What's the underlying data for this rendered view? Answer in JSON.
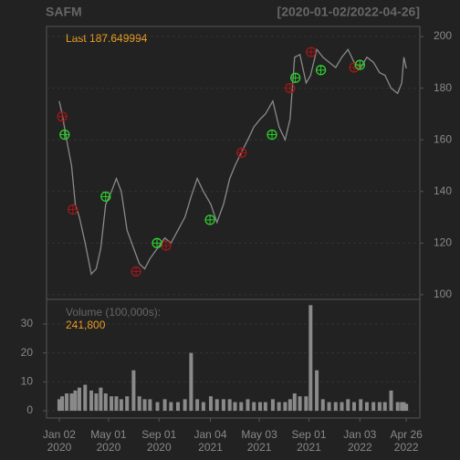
{
  "chart_data": [
    {
      "type": "line",
      "title": "SAFM",
      "subtitle": "[2020-01-02/2022-04-26]",
      "annotation": "Last 187.649994",
      "x": [
        "2020-01-02",
        "2020-01-09",
        "2020-01-20",
        "2020-02-01",
        "2020-02-10",
        "2020-02-20",
        "2020-03-05",
        "2020-03-20",
        "2020-04-01",
        "2020-04-12",
        "2020-04-24",
        "2020-05-08",
        "2020-05-20",
        "2020-06-01",
        "2020-06-15",
        "2020-07-01",
        "2020-07-15",
        "2020-07-28",
        "2020-08-10",
        "2020-08-28",
        "2020-09-15",
        "2020-09-30",
        "2020-10-17",
        "2020-11-03",
        "2020-11-18",
        "2020-12-03",
        "2020-12-18",
        "2021-01-05",
        "2021-01-20",
        "2021-02-05",
        "2021-02-20",
        "2021-03-05",
        "2021-03-20",
        "2021-04-05",
        "2021-04-20",
        "2021-05-05",
        "2021-05-18",
        "2021-06-05",
        "2021-06-20",
        "2021-07-05",
        "2021-07-17",
        "2021-07-28",
        "2021-08-10",
        "2021-08-25",
        "2021-09-05",
        "2021-09-20",
        "2021-10-05",
        "2021-10-20",
        "2021-11-05",
        "2021-11-20",
        "2021-12-05",
        "2021-12-20",
        "2022-01-05",
        "2022-01-20",
        "2022-02-05",
        "2022-02-20",
        "2022-03-05",
        "2022-03-20",
        "2022-04-05",
        "2022-04-15",
        "2022-04-20",
        "2022-04-26"
      ],
      "values": [
        175,
        170,
        160,
        150,
        135,
        130,
        120,
        108,
        110,
        118,
        135,
        140,
        145,
        140,
        125,
        118,
        112,
        110,
        114,
        118,
        122,
        120,
        125,
        130,
        138,
        145,
        140,
        135,
        128,
        135,
        145,
        150,
        155,
        160,
        165,
        168,
        170,
        175,
        165,
        160,
        168,
        192,
        193,
        182,
        185,
        195,
        192,
        190,
        188,
        192,
        195,
        190,
        188,
        192,
        190,
        186,
        185,
        180,
        178,
        182,
        192,
        187.649994
      ],
      "color": "#8a8a8a",
      "xlim": [
        "2019-12-02",
        "2022-05-29"
      ],
      "ylim": [
        98.2,
        203.9
      ],
      "yticks": [
        100,
        120,
        140,
        160,
        180,
        200
      ],
      "grid": true,
      "sell_signals": {
        "color": "#a01818",
        "x": [
          "2020-01-09",
          "2020-02-04",
          "2020-07-07",
          "2020-09-18",
          "2021-03-21",
          "2021-07-17",
          "2021-09-06",
          "2021-12-20"
        ],
        "values": [
          169,
          133,
          109,
          119,
          155,
          180,
          194,
          188
        ]
      },
      "buy_signals": {
        "color": "#2ed02e",
        "x": [
          "2020-01-15",
          "2020-04-24",
          "2020-08-27",
          "2021-01-03",
          "2021-06-03",
          "2021-07-30",
          "2021-09-30",
          "2022-01-03"
        ],
        "values": [
          162,
          138,
          120,
          129,
          162,
          184,
          187,
          189
        ]
      }
    },
    {
      "type": "bar",
      "title": "Volume (100,000s):",
      "annotation": "241,800",
      "x": [
        "2020-01-02",
        "2020-01-09",
        "2020-01-20",
        "2020-02-01",
        "2020-02-10",
        "2020-02-20",
        "2020-03-05",
        "2020-03-20",
        "2020-04-01",
        "2020-04-12",
        "2020-04-24",
        "2020-05-08",
        "2020-05-20",
        "2020-06-01",
        "2020-06-15",
        "2020-07-01",
        "2020-07-15",
        "2020-07-28",
        "2020-08-10",
        "2020-08-28",
        "2020-09-15",
        "2020-09-30",
        "2020-10-17",
        "2020-11-03",
        "2020-11-18",
        "2020-12-03",
        "2020-12-18",
        "2021-01-05",
        "2021-01-20",
        "2021-02-05",
        "2021-02-20",
        "2021-03-05",
        "2021-03-20",
        "2021-04-05",
        "2021-04-20",
        "2021-05-05",
        "2021-05-18",
        "2021-06-05",
        "2021-06-20",
        "2021-07-05",
        "2021-07-17",
        "2021-07-28",
        "2021-08-10",
        "2021-08-25",
        "2021-09-05",
        "2021-09-20",
        "2021-10-05",
        "2021-10-20",
        "2021-11-05",
        "2021-11-20",
        "2021-12-05",
        "2021-12-20",
        "2022-01-05",
        "2022-01-20",
        "2022-02-05",
        "2022-02-20",
        "2022-03-05",
        "2022-03-20",
        "2022-04-05",
        "2022-04-15",
        "2022-04-20",
        "2022-04-26"
      ],
      "values": [
        4,
        5,
        6,
        6,
        7,
        8,
        9,
        7,
        6,
        8,
        6,
        5,
        5,
        4,
        5,
        14,
        5,
        4,
        4,
        3,
        4,
        3,
        3,
        4,
        20,
        4,
        3,
        5,
        4,
        4,
        4,
        3,
        3,
        4,
        3,
        3,
        3,
        4,
        3,
        3,
        4,
        6,
        5,
        5,
        36.5,
        14,
        4,
        3,
        3,
        3,
        4,
        3,
        4,
        3,
        3,
        3,
        3,
        7,
        3,
        3,
        3,
        2.4
      ],
      "color": "#8a8a8a",
      "xlim": [
        "2019-12-02",
        "2022-05-29"
      ],
      "ylim": [
        -2.5,
        38.5
      ],
      "yticks": [
        0,
        10,
        20,
        30
      ],
      "grid": true,
      "xticks": [
        {
          "value": "2020-01-02",
          "label": [
            "Jan 02",
            "2020"
          ]
        },
        {
          "value": "2020-05-01",
          "label": [
            "May 01",
            "2020"
          ]
        },
        {
          "value": "2020-09-01",
          "label": [
            "Sep 01",
            "2020"
          ]
        },
        {
          "value": "2021-01-04",
          "label": [
            "Jan 04",
            "2021"
          ]
        },
        {
          "value": "2021-05-03",
          "label": [
            "May 03",
            "2021"
          ]
        },
        {
          "value": "2021-09-01",
          "label": [
            "Sep 01",
            "2021"
          ]
        },
        {
          "value": "2022-01-03",
          "label": [
            "Jan 03",
            "2022"
          ]
        },
        {
          "value": "2022-04-26",
          "label": [
            "Apr 26",
            "2022"
          ]
        }
      ]
    }
  ]
}
